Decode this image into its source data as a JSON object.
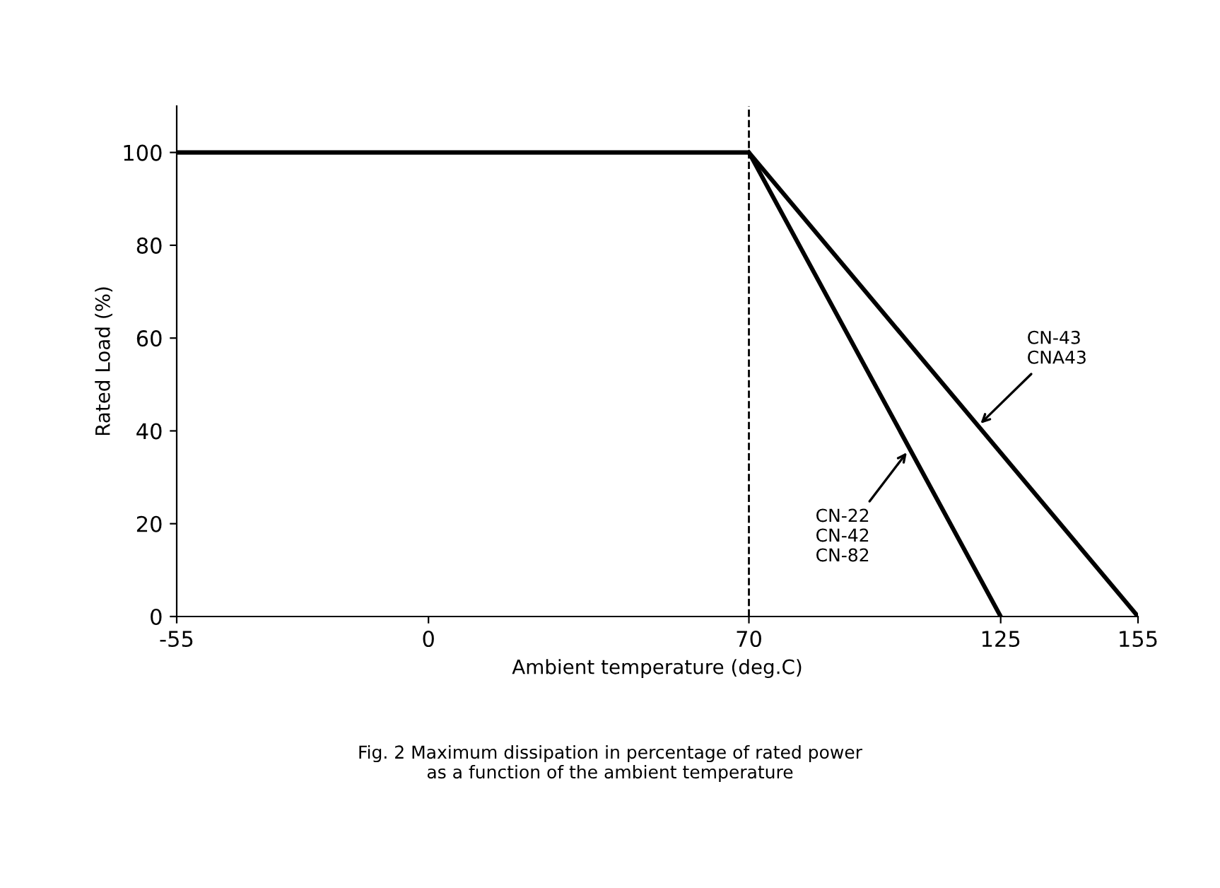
{
  "chart_data": {
    "type": "line",
    "xlabel": "Ambient temperature (deg.C)",
    "ylabel": "Rated Load (%)",
    "series": [
      {
        "color": "#000000",
        "x": [
          -55,
          70,
          125
        ],
        "values": [
          100,
          100,
          0
        ]
      },
      {
        "color": "#000000",
        "x": [
          70,
          155
        ],
        "values": [
          100,
          0
        ]
      }
    ],
    "xlim": [
      -55,
      155
    ],
    "xticks": [
      -55,
      0,
      70,
      125,
      155
    ],
    "ylim": [
      0,
      110
    ],
    "yticks": [
      0,
      20,
      40,
      60,
      80,
      100
    ],
    "ref_lines": [
      {
        "axis": "x",
        "value": 70,
        "label": null,
        "color": "#000000",
        "line_style": "dashed"
      }
    ],
    "annotations": [
      {
        "text": "CN-22\nCN-42\nCN-82",
        "x": 105,
        "y": 36
      },
      {
        "text": "CN-43\nCNA43",
        "x": 120,
        "y": 41
      },
      "Fig. 2 Maximum dissipation in percentage of rated power\nas a function of the ambient temperature"
    ],
    "grid": false,
    "legend": false,
    "marker": "none",
    "line_style": "solid"
  }
}
